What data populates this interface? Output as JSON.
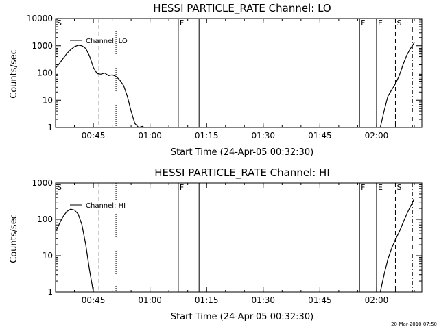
{
  "chart_data": [
    {
      "type": "line",
      "title": "HESSI PARTICLE_RATE Channel: LO",
      "xlabel": "Start Time (24-Apr-05 00:32:30)",
      "ylabel": "Counts/sec",
      "yscale": "log",
      "xlim": [
        "00:35",
        "02:12"
      ],
      "ylim": [
        1,
        10000
      ],
      "x_tick_labels": [
        "00:45",
        "01:00",
        "01:15",
        "01:30",
        "01:45",
        "02:00"
      ],
      "y_tick_labels": [
        "1",
        "10",
        "100",
        "1000",
        "10000"
      ],
      "legend": {
        "label": "Channel: LO",
        "placement": "top-left"
      },
      "series": [
        {
          "name": "Channel: LO",
          "points": [
            [
              "00:35",
              150
            ],
            [
              "00:36",
              220
            ],
            [
              "00:37",
              340
            ],
            [
              "00:38",
              520
            ],
            [
              "00:39",
              720
            ],
            [
              "00:40",
              920
            ],
            [
              "00:41",
              1050
            ],
            [
              "00:42",
              1000
            ],
            [
              "00:43",
              800
            ],
            [
              "00:44",
              420
            ],
            [
              "00:45",
              160
            ],
            [
              "00:46",
              95
            ],
            [
              "00:47",
              90
            ],
            [
              "00:48",
              100
            ],
            [
              "00:49",
              80
            ],
            [
              "00:50",
              85
            ],
            [
              "00:51",
              75
            ],
            [
              "00:52",
              55
            ],
            [
              "00:53",
              35
            ],
            [
              "00:54",
              14
            ],
            [
              "00:55",
              4
            ],
            [
              "00:56",
              1.4
            ],
            [
              "00:57",
              1
            ],
            [
              "00:58",
              1.1
            ],
            [
              "00:58.5",
              1
            ]
          ]
        },
        {
          "name": "Channel: LO",
          "points": [
            [
              "02:01",
              1
            ],
            [
              "02:02",
              4
            ],
            [
              "02:03",
              14
            ],
            [
              "02:04",
              24
            ],
            [
              "02:05",
              40
            ],
            [
              "02:06",
              80
            ],
            [
              "02:07",
              200
            ],
            [
              "02:08",
              450
            ],
            [
              "02:09",
              800
            ],
            [
              "02:10",
              1300
            ]
          ]
        }
      ],
      "markers": [
        {
          "label": "S",
          "time": "00:35",
          "style": "none"
        },
        {
          "label": "",
          "time": "00:46.5",
          "style": "dashed"
        },
        {
          "label": "",
          "time": "00:51",
          "style": "dotted"
        },
        {
          "label": "F",
          "time": "01:07.5",
          "style": "solid"
        },
        {
          "label": "",
          "time": "01:13",
          "style": "solid"
        },
        {
          "label": "F",
          "time": "01:55.5",
          "style": "solid"
        },
        {
          "label": "E",
          "time": "02:00",
          "style": "solid"
        },
        {
          "label": "S",
          "time": "02:05",
          "style": "dashed"
        },
        {
          "label": "",
          "time": "02:09.5",
          "style": "dashdot"
        }
      ]
    },
    {
      "type": "line",
      "title": "HESSI PARTICLE_RATE Channel: HI",
      "xlabel": "Start Time (24-Apr-05 00:32:30)",
      "ylabel": "Counts/sec",
      "yscale": "log",
      "xlim": [
        "00:35",
        "02:12"
      ],
      "ylim": [
        1,
        1000
      ],
      "x_tick_labels": [
        "00:45",
        "01:00",
        "01:15",
        "01:30",
        "01:45",
        "02:00"
      ],
      "y_tick_labels": [
        "1",
        "10",
        "100",
        "1000"
      ],
      "legend": {
        "label": "Channel: HI",
        "placement": "top-left"
      },
      "series": [
        {
          "name": "Channel: HI",
          "points": [
            [
              "00:35",
              45
            ],
            [
              "00:36",
              75
            ],
            [
              "00:37",
              120
            ],
            [
              "00:38",
              165
            ],
            [
              "00:39",
              190
            ],
            [
              "00:40",
              180
            ],
            [
              "00:41",
              140
            ],
            [
              "00:42",
              70
            ],
            [
              "00:43",
              20
            ],
            [
              "00:44",
              4
            ],
            [
              "00:45",
              1
            ]
          ]
        },
        {
          "name": "Channel: HI",
          "points": [
            [
              "02:01",
              1
            ],
            [
              "02:02",
              3
            ],
            [
              "02:03",
              8
            ],
            [
              "02:04",
              16
            ],
            [
              "02:05",
              28
            ],
            [
              "02:06",
              45
            ],
            [
              "02:07",
              80
            ],
            [
              "02:08",
              140
            ],
            [
              "02:09",
              230
            ],
            [
              "02:10",
              370
            ]
          ]
        }
      ],
      "markers": [
        {
          "label": "S",
          "time": "00:35",
          "style": "none"
        },
        {
          "label": "",
          "time": "00:46.5",
          "style": "dashed"
        },
        {
          "label": "",
          "time": "00:51",
          "style": "dotted"
        },
        {
          "label": "F",
          "time": "01:07.5",
          "style": "solid"
        },
        {
          "label": "",
          "time": "01:13",
          "style": "solid"
        },
        {
          "label": "F",
          "time": "01:55.5",
          "style": "solid"
        },
        {
          "label": "E",
          "time": "02:00",
          "style": "solid"
        },
        {
          "label": "S",
          "time": "02:05",
          "style": "dashed"
        },
        {
          "label": "",
          "time": "02:09.5",
          "style": "dashdot"
        }
      ]
    }
  ],
  "footer": {
    "timestamp": "20-Mar-2010 07:50"
  }
}
